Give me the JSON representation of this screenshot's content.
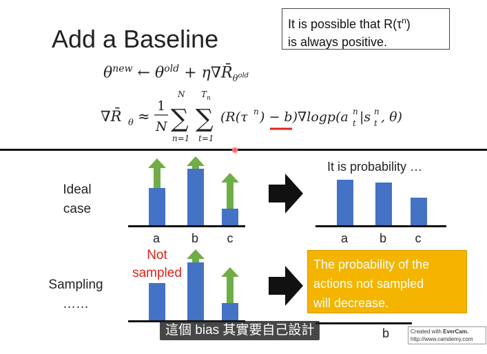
{
  "slide": {
    "title": "Add a Baseline",
    "note_line1": "It is possible that R(τ",
    "note_sup": "n",
    "note_line1_end": ")",
    "note_line2": "is always positive.",
    "labels": {
      "ideal_line1": "Ideal",
      "ideal_line2": "case",
      "sampling_line1": "Sampling",
      "sampling_line2": "……",
      "not_sampled_line1": "Not",
      "not_sampled_line2": "sampled",
      "probability_title": "It is probability …"
    },
    "categories": [
      "a",
      "b",
      "c"
    ],
    "callout": [
      "The probability of the",
      "actions not sampled",
      "will decrease."
    ]
  },
  "chart_data": [
    {
      "type": "bar",
      "name_hint": "ideal-case-gradient",
      "categories": [
        "a",
        "b",
        "c"
      ],
      "values": [
        54,
        82,
        24
      ],
      "arrows_up": [
        true,
        true,
        true
      ]
    },
    {
      "type": "bar",
      "name_hint": "ideal-case-probability",
      "categories": [
        "a",
        "b",
        "c"
      ],
      "values": [
        66,
        62,
        40
      ]
    },
    {
      "type": "bar",
      "name_hint": "sampling-gradient",
      "categories": [
        "a",
        "b",
        "c"
      ],
      "values": [
        54,
        84,
        25
      ],
      "arrows_up": [
        false,
        true,
        true
      ]
    },
    {
      "type": "bar",
      "name_hint": "sampling-probability",
      "categories": [
        "a",
        "b",
        "c"
      ],
      "values": [
        null,
        null,
        null
      ]
    }
  ],
  "overlay": {
    "subtitle": "這個 bias 其實要自己設計",
    "watermark_line1_pre": "Created with ",
    "watermark_line1_brand": "EverCam.",
    "watermark_line2": "http://www.camdemy.com"
  },
  "colors": {
    "bar": "#4472c4",
    "arrow": "#70ad47",
    "callout": "#f4b400",
    "emphasis": "#e0201a"
  }
}
